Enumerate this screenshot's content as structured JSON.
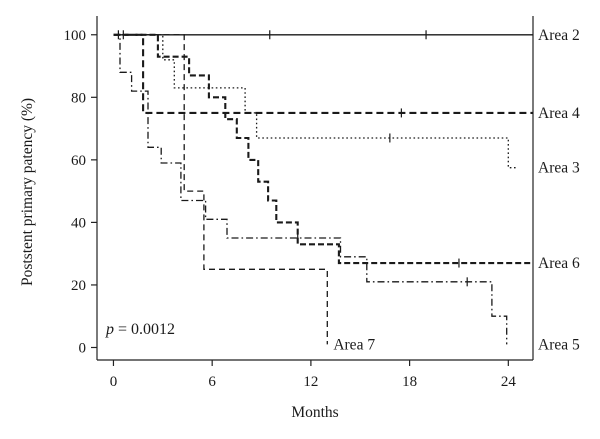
{
  "chart_data": {
    "type": "line",
    "step": true,
    "xlabel": "Months",
    "ylabel": "Poststent primary patency (%)",
    "xlim": [
      -1,
      25.5
    ],
    "ylim": [
      -4,
      106
    ],
    "xticks": [
      0,
      6,
      12,
      18,
      24
    ],
    "yticks": [
      0,
      20,
      40,
      60,
      80,
      100
    ],
    "grid": false,
    "legend": "direct labels at right end of each curve",
    "annotation": {
      "prefix": "p",
      "text": " = 0.0012"
    },
    "series": [
      {
        "name": "Area 2",
        "dash": "solid",
        "points": [
          [
            0,
            100
          ],
          [
            25.5,
            100
          ]
        ],
        "censored": [
          [
            0.3,
            100
          ],
          [
            0.6,
            100
          ],
          [
            9.5,
            100
          ],
          [
            19,
            100
          ]
        ]
      },
      {
        "name": "Area 4",
        "dash": "long-dash",
        "points": [
          [
            0,
            100
          ],
          [
            1.8,
            100
          ],
          [
            1.8,
            75
          ],
          [
            25.5,
            75
          ]
        ],
        "censored": [
          [
            17.5,
            75
          ]
        ]
      },
      {
        "name": "Area 3",
        "dash": "dotted",
        "points": [
          [
            0,
            100
          ],
          [
            3,
            100
          ],
          [
            3,
            92
          ],
          [
            3.7,
            92
          ],
          [
            3.7,
            83
          ],
          [
            8,
            83
          ],
          [
            8,
            75
          ],
          [
            8.7,
            75
          ],
          [
            8.7,
            67
          ],
          [
            24,
            67
          ],
          [
            24,
            57.5
          ],
          [
            24.5,
            57.5
          ]
        ],
        "censored": [
          [
            16.8,
            67
          ]
        ]
      },
      {
        "name": "Area 6",
        "dash": "dash",
        "points": [
          [
            0,
            100
          ],
          [
            2.7,
            100
          ],
          [
            2.7,
            93
          ],
          [
            4.6,
            93
          ],
          [
            4.6,
            87
          ],
          [
            5.8,
            87
          ],
          [
            5.8,
            80
          ],
          [
            6.8,
            80
          ],
          [
            6.8,
            73
          ],
          [
            7.5,
            73
          ],
          [
            7.5,
            67
          ],
          [
            8.2,
            67
          ],
          [
            8.2,
            60
          ],
          [
            8.8,
            60
          ],
          [
            8.8,
            53
          ],
          [
            9.4,
            53
          ],
          [
            9.4,
            47
          ],
          [
            9.9,
            47
          ],
          [
            9.9,
            40
          ],
          [
            11.2,
            40
          ],
          [
            11.2,
            33
          ],
          [
            13.7,
            33
          ],
          [
            13.7,
            27
          ],
          [
            25.5,
            27
          ]
        ],
        "censored": [
          [
            21,
            27
          ]
        ]
      },
      {
        "name": "Area 5",
        "dash": "dash-dot",
        "points": [
          [
            0,
            100
          ],
          [
            0.4,
            100
          ],
          [
            0.4,
            88
          ],
          [
            1.1,
            88
          ],
          [
            1.1,
            82
          ],
          [
            2.1,
            82
          ],
          [
            2.1,
            64
          ],
          [
            2.9,
            64
          ],
          [
            2.9,
            59
          ],
          [
            4.1,
            59
          ],
          [
            4.1,
            47
          ],
          [
            5.6,
            47
          ],
          [
            5.6,
            41
          ],
          [
            6.9,
            41
          ],
          [
            6.9,
            35
          ],
          [
            13.8,
            35
          ],
          [
            13.8,
            29
          ],
          [
            15.4,
            29
          ],
          [
            15.4,
            21
          ],
          [
            23,
            21
          ],
          [
            23,
            10
          ],
          [
            23.9,
            10
          ],
          [
            23.9,
            1
          ]
        ],
        "censored": [
          [
            11.2,
            35
          ],
          [
            21.5,
            21
          ]
        ]
      },
      {
        "name": "Area 7",
        "dash": "medium-dash",
        "points": [
          [
            0,
            100
          ],
          [
            4.3,
            100
          ],
          [
            4.3,
            50
          ],
          [
            5.5,
            50
          ],
          [
            5.5,
            25
          ],
          [
            13,
            25
          ],
          [
            13,
            1
          ]
        ],
        "censored": []
      }
    ],
    "label_positions": {
      "Area 2": 100,
      "Area 4": 75,
      "Area 3": 57.5,
      "Area 6": 27,
      "Area 5": 1,
      "Area 7": 1
    }
  }
}
